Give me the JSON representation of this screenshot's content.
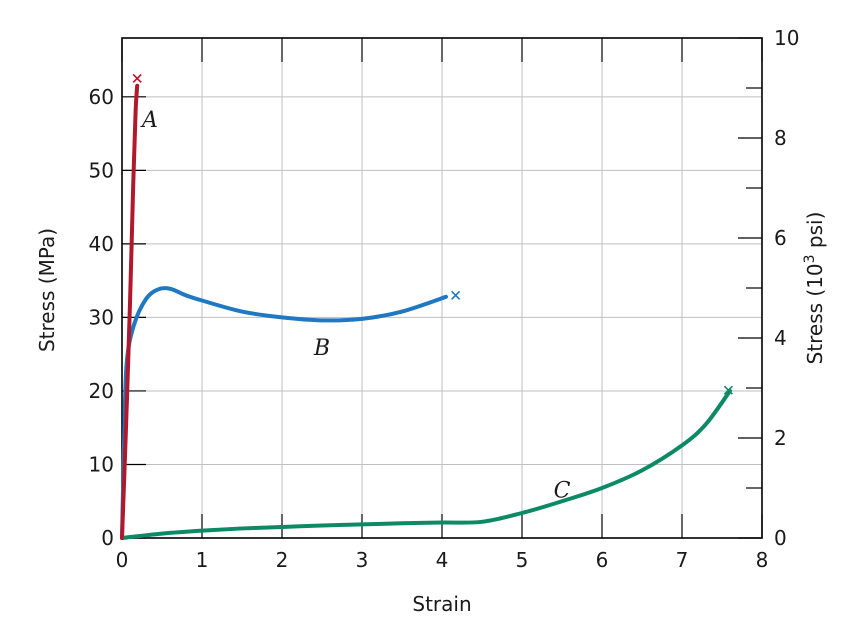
{
  "chart_data": {
    "type": "line",
    "title": "",
    "xlabel": "Strain",
    "ylabel": "Stress (MPa)",
    "ylabel_right": "Stress (10",
    "ylabel_right_exp": "3",
    "ylabel_right_suffix": " psi)",
    "xlim": [
      0,
      8
    ],
    "ylim": [
      0,
      68
    ],
    "ylim_right": [
      0,
      10
    ],
    "xticks": [
      "0",
      "1",
      "2",
      "3",
      "4",
      "5",
      "6",
      "7",
      "8"
    ],
    "yticks": [
      "0",
      "10",
      "20",
      "30",
      "40",
      "50",
      "60"
    ],
    "yticks_right": [
      "0",
      "2",
      "4",
      "6",
      "8",
      "10"
    ],
    "grid": true,
    "series": [
      {
        "name": "A",
        "color": "#b2182b",
        "points": [
          [
            0,
            0
          ],
          [
            0.05,
            15
          ],
          [
            0.1,
            32
          ],
          [
            0.14,
            48
          ],
          [
            0.17,
            58
          ],
          [
            0.19,
            61.5
          ]
        ],
        "fracture": [
          0.19,
          62.5
        ],
        "label_pos": [
          0.35,
          57
        ]
      },
      {
        "name": "B",
        "color": "#1f78c1",
        "points": [
          [
            0,
            0
          ],
          [
            0.03,
            15
          ],
          [
            0.06,
            24
          ],
          [
            0.15,
            29
          ],
          [
            0.3,
            32.5
          ],
          [
            0.45,
            33.8
          ],
          [
            0.6,
            33.9
          ],
          [
            0.8,
            33
          ],
          [
            1.0,
            32.3
          ],
          [
            1.5,
            30.8
          ],
          [
            2.0,
            30
          ],
          [
            2.5,
            29.6
          ],
          [
            3.0,
            29.8
          ],
          [
            3.5,
            30.8
          ],
          [
            4.05,
            32.8
          ]
        ],
        "fracture": [
          4.17,
          33
        ],
        "label_pos": [
          2.5,
          26
        ]
      },
      {
        "name": "C",
        "color": "#0c8a66",
        "points": [
          [
            0,
            0
          ],
          [
            0.5,
            0.6
          ],
          [
            1.0,
            1.0
          ],
          [
            1.5,
            1.3
          ],
          [
            2.0,
            1.5
          ],
          [
            2.5,
            1.7
          ],
          [
            3.0,
            1.85
          ],
          [
            3.5,
            2.0
          ],
          [
            4.0,
            2.1
          ],
          [
            4.5,
            2.2
          ],
          [
            5.0,
            3.4
          ],
          [
            5.5,
            5.0
          ],
          [
            6.0,
            6.8
          ],
          [
            6.5,
            9.2
          ],
          [
            7.0,
            12.6
          ],
          [
            7.3,
            15.5
          ],
          [
            7.6,
            20
          ]
        ],
        "fracture": [
          7.58,
          20.1
        ],
        "label_pos": [
          5.5,
          6.6
        ]
      }
    ]
  }
}
